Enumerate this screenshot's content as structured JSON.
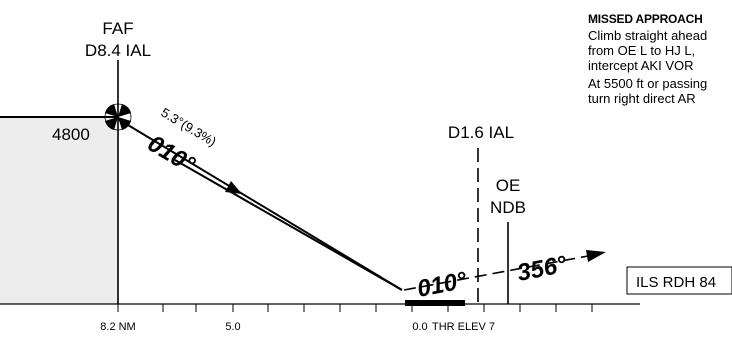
{
  "faf": {
    "label": "FAF",
    "distance": "D8.4 IAL"
  },
  "fix_altitude": "4800",
  "glidepath": {
    "angle": "5.3°(9.3%)",
    "course": "010°"
  },
  "d16": "D1.6 IAL",
  "ndb": {
    "ident": "OE",
    "type": "NDB"
  },
  "runway_course": "010°",
  "missed_course": "356°",
  "ils_rdh": "ILS RDH 84",
  "distance_scale": {
    "left": "8.2 NM",
    "mid": "5.0",
    "zero": "0.0",
    "thr_elev": "THR ELEV 7"
  },
  "missed_approach": {
    "title": "MISSED APPROACH",
    "lines": [
      "Climb straight ahead",
      "from OE L to HJ L,",
      "intercept AKI VOR",
      "At 5500 ft or passing",
      "turn right direct AR"
    ]
  }
}
